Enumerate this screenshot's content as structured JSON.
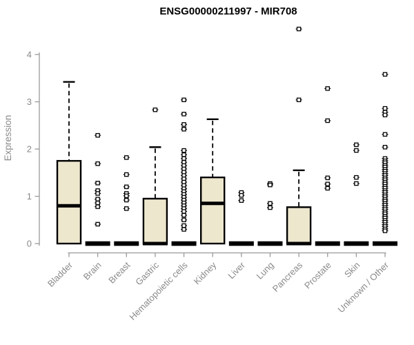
{
  "chart_data": {
    "type": "boxplot",
    "title": "ENSG00000211997 - MIR708",
    "ylabel": "Expression",
    "xlabel": "",
    "yticks": [
      0,
      1,
      2,
      3,
      4
    ],
    "ylim": [
      0,
      4.6
    ],
    "grid": false,
    "legend": "none",
    "colors": {
      "box_fill": "#EDE7CE",
      "box_stroke": "#000000",
      "median": "#000000",
      "whisker": "#000000",
      "outlier_fill": "#FFFFFF",
      "axis_line": "#999999",
      "tick_label": "#8A8A8A",
      "title": "#000000"
    },
    "categories": [
      "Bladder",
      "Brain",
      "Breast",
      "Gastric",
      "Hematopoietic cells",
      "Kidney",
      "Liver",
      "Lung",
      "Pancreas",
      "Prostate",
      "Skin",
      "Unknown / Other"
    ],
    "boxes": [
      {
        "category": "Bladder",
        "q1": 0,
        "median": 0.8,
        "q3": 1.75,
        "whisker_low": 0,
        "whisker_high": 3.42,
        "outliers": []
      },
      {
        "category": "Brain",
        "q1": 0,
        "median": 0,
        "q3": 0,
        "whisker_low": 0,
        "whisker_high": 0,
        "outliers": [
          2.29,
          1.69,
          1.28,
          1.12,
          1.06,
          0.94,
          0.86,
          0.78,
          0.41
        ]
      },
      {
        "category": "Breast",
        "q1": 0,
        "median": 0,
        "q3": 0,
        "whisker_low": 0,
        "whisker_high": 0,
        "outliers": [
          1.82,
          1.46,
          1.2,
          1.06,
          1.01,
          0.92,
          0.74
        ]
      },
      {
        "category": "Gastric",
        "q1": 0,
        "median": 0,
        "q3": 0.95,
        "whisker_low": 0,
        "whisker_high": 2.04,
        "outliers": [
          2.83
        ]
      },
      {
        "category": "Hematopoietic cells",
        "q1": 0,
        "median": 0,
        "q3": 0,
        "whisker_low": 0,
        "whisker_high": 0,
        "outliers": [
          3.04,
          2.74,
          2.52,
          2.42,
          1.97,
          1.88,
          1.8,
          1.72,
          1.65,
          1.58,
          1.51,
          1.44,
          1.37,
          1.3,
          1.23,
          1.16,
          1.1,
          1.04,
          0.98,
          0.92,
          0.86,
          0.8,
          0.74,
          0.68,
          0.6,
          0.5,
          0.38,
          0.3
        ]
      },
      {
        "category": "Kidney",
        "q1": 0,
        "median": 0.85,
        "q3": 1.4,
        "whisker_low": 0,
        "whisker_high": 2.63,
        "outliers": []
      },
      {
        "category": "Liver",
        "q1": 0,
        "median": 0,
        "q3": 0,
        "whisker_low": 0,
        "whisker_high": 0,
        "outliers": [
          1.08,
          1.02,
          0.91
        ]
      },
      {
        "category": "Lung",
        "q1": 0,
        "median": 0,
        "q3": 0,
        "whisker_low": 0,
        "whisker_high": 0,
        "outliers": [
          1.27,
          1.24,
          0.85,
          0.76
        ]
      },
      {
        "category": "Pancreas",
        "q1": 0,
        "median": 0,
        "q3": 0.77,
        "whisker_low": 0,
        "whisker_high": 1.55,
        "outliers": [
          4.54,
          3.04
        ]
      },
      {
        "category": "Prostate",
        "q1": 0,
        "median": 0,
        "q3": 0,
        "whisker_low": 0,
        "whisker_high": 0,
        "outliers": [
          3.28,
          2.6,
          1.39,
          1.26,
          1.17
        ]
      },
      {
        "category": "Skin",
        "q1": 0,
        "median": 0,
        "q3": 0,
        "whisker_low": 0,
        "whisker_high": 0,
        "outliers": [
          2.09,
          1.97,
          1.4,
          1.27
        ]
      },
      {
        "category": "Unknown / Other",
        "q1": 0,
        "median": 0,
        "q3": 0,
        "whisker_low": 0,
        "whisker_high": 0,
        "outliers": [
          3.58,
          2.86,
          2.78,
          2.72,
          2.31,
          2.04,
          1.8,
          1.75,
          1.71,
          1.66,
          1.62,
          1.57,
          1.53,
          1.48,
          1.44,
          1.39,
          1.35,
          1.3,
          1.26,
          1.21,
          1.17,
          1.12,
          1.08,
          1.03,
          0.99,
          0.94,
          0.9,
          0.85,
          0.81,
          0.76,
          0.72,
          0.67,
          0.63,
          0.58,
          0.54,
          0.49,
          0.45,
          0.4,
          0.36,
          0.31,
          0.27
        ]
      }
    ]
  }
}
